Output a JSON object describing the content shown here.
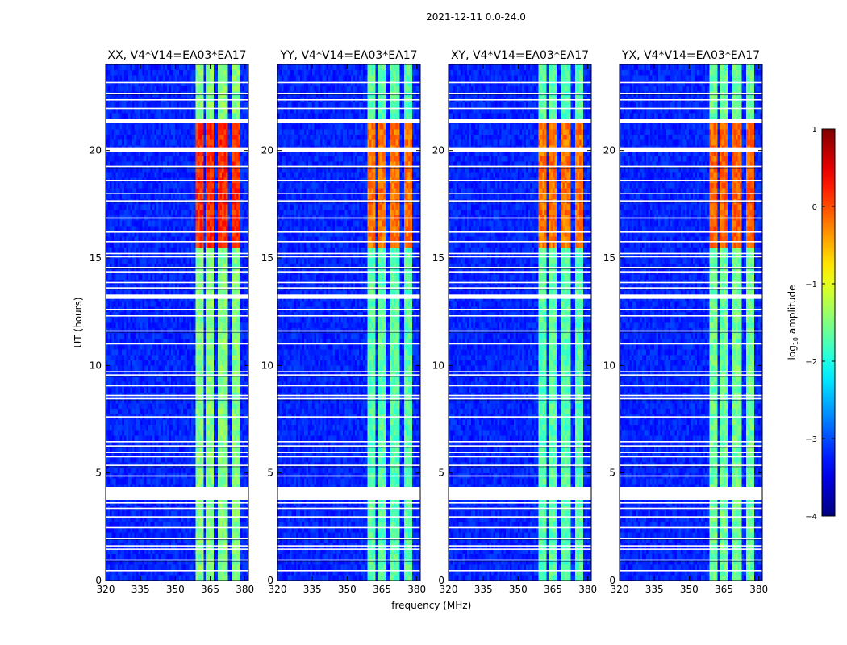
{
  "figure_title": "2021-12-11 0.0-24.0",
  "chart_data": {
    "type": "heatmap",
    "title": "2021-12-11 0.0-24.0",
    "xlabel": "frequency (MHz)",
    "ylabel": "UT (hours)",
    "xlim": [
      320,
      381.5
    ],
    "ylim": [
      0,
      24
    ],
    "xticks": [
      320,
      335,
      350,
      365,
      380
    ],
    "yticks": [
      0,
      5,
      10,
      15,
      20
    ],
    "colorbar": {
      "label": "log10 amplitude",
      "label_main": "log",
      "label_sub": "10",
      "label_rest": " amplitude",
      "range": [
        -4,
        1
      ],
      "ticks": [
        "1",
        "0",
        "−1",
        "−2",
        "−3",
        "−4"
      ],
      "colormap": "jet"
    },
    "panels": [
      {
        "title": "XX, V4*V14=EA03*EA17",
        "band_level": -0.9,
        "strong_level": 0.15
      },
      {
        "title": "YY, V4*V14=EA03*EA17",
        "band_level": -1.1,
        "strong_level": -0.2
      },
      {
        "title": "XY, V4*V14=EA03*EA17",
        "band_level": -1.1,
        "strong_level": -0.2
      },
      {
        "title": "YX, V4*V14=EA03*EA17",
        "band_level": -1.0,
        "strong_level": -0.1
      }
    ],
    "background_level": -3.2,
    "band_range_mhz": [
      359,
      378
    ],
    "band_gaps_mhz": [
      362.5,
      367.5,
      373.5
    ],
    "strong_interval_ut": [
      15.5,
      21.5
    ],
    "flagged_ut_ranges": [
      [
        3.75,
        4.35
      ],
      [
        13.1,
        13.3
      ],
      [
        19.95,
        20.15
      ],
      [
        21.3,
        21.45
      ]
    ],
    "flagged_ut_lines": [
      0.45,
      0.95,
      1.45,
      1.6,
      1.95,
      2.45,
      2.95,
      3.35,
      3.6,
      4.85,
      5.35,
      5.75,
      5.95,
      6.25,
      6.45,
      7.6,
      8.45,
      8.6,
      9.05,
      9.55,
      9.7,
      11.0,
      11.6,
      12.3,
      12.6,
      13.6,
      13.85,
      14.35,
      14.55,
      15.05,
      15.2,
      15.75,
      16.2,
      16.85,
      17.65,
      18.0,
      18.6,
      19.25,
      21.95,
      22.35,
      22.65,
      23.15
    ]
  }
}
